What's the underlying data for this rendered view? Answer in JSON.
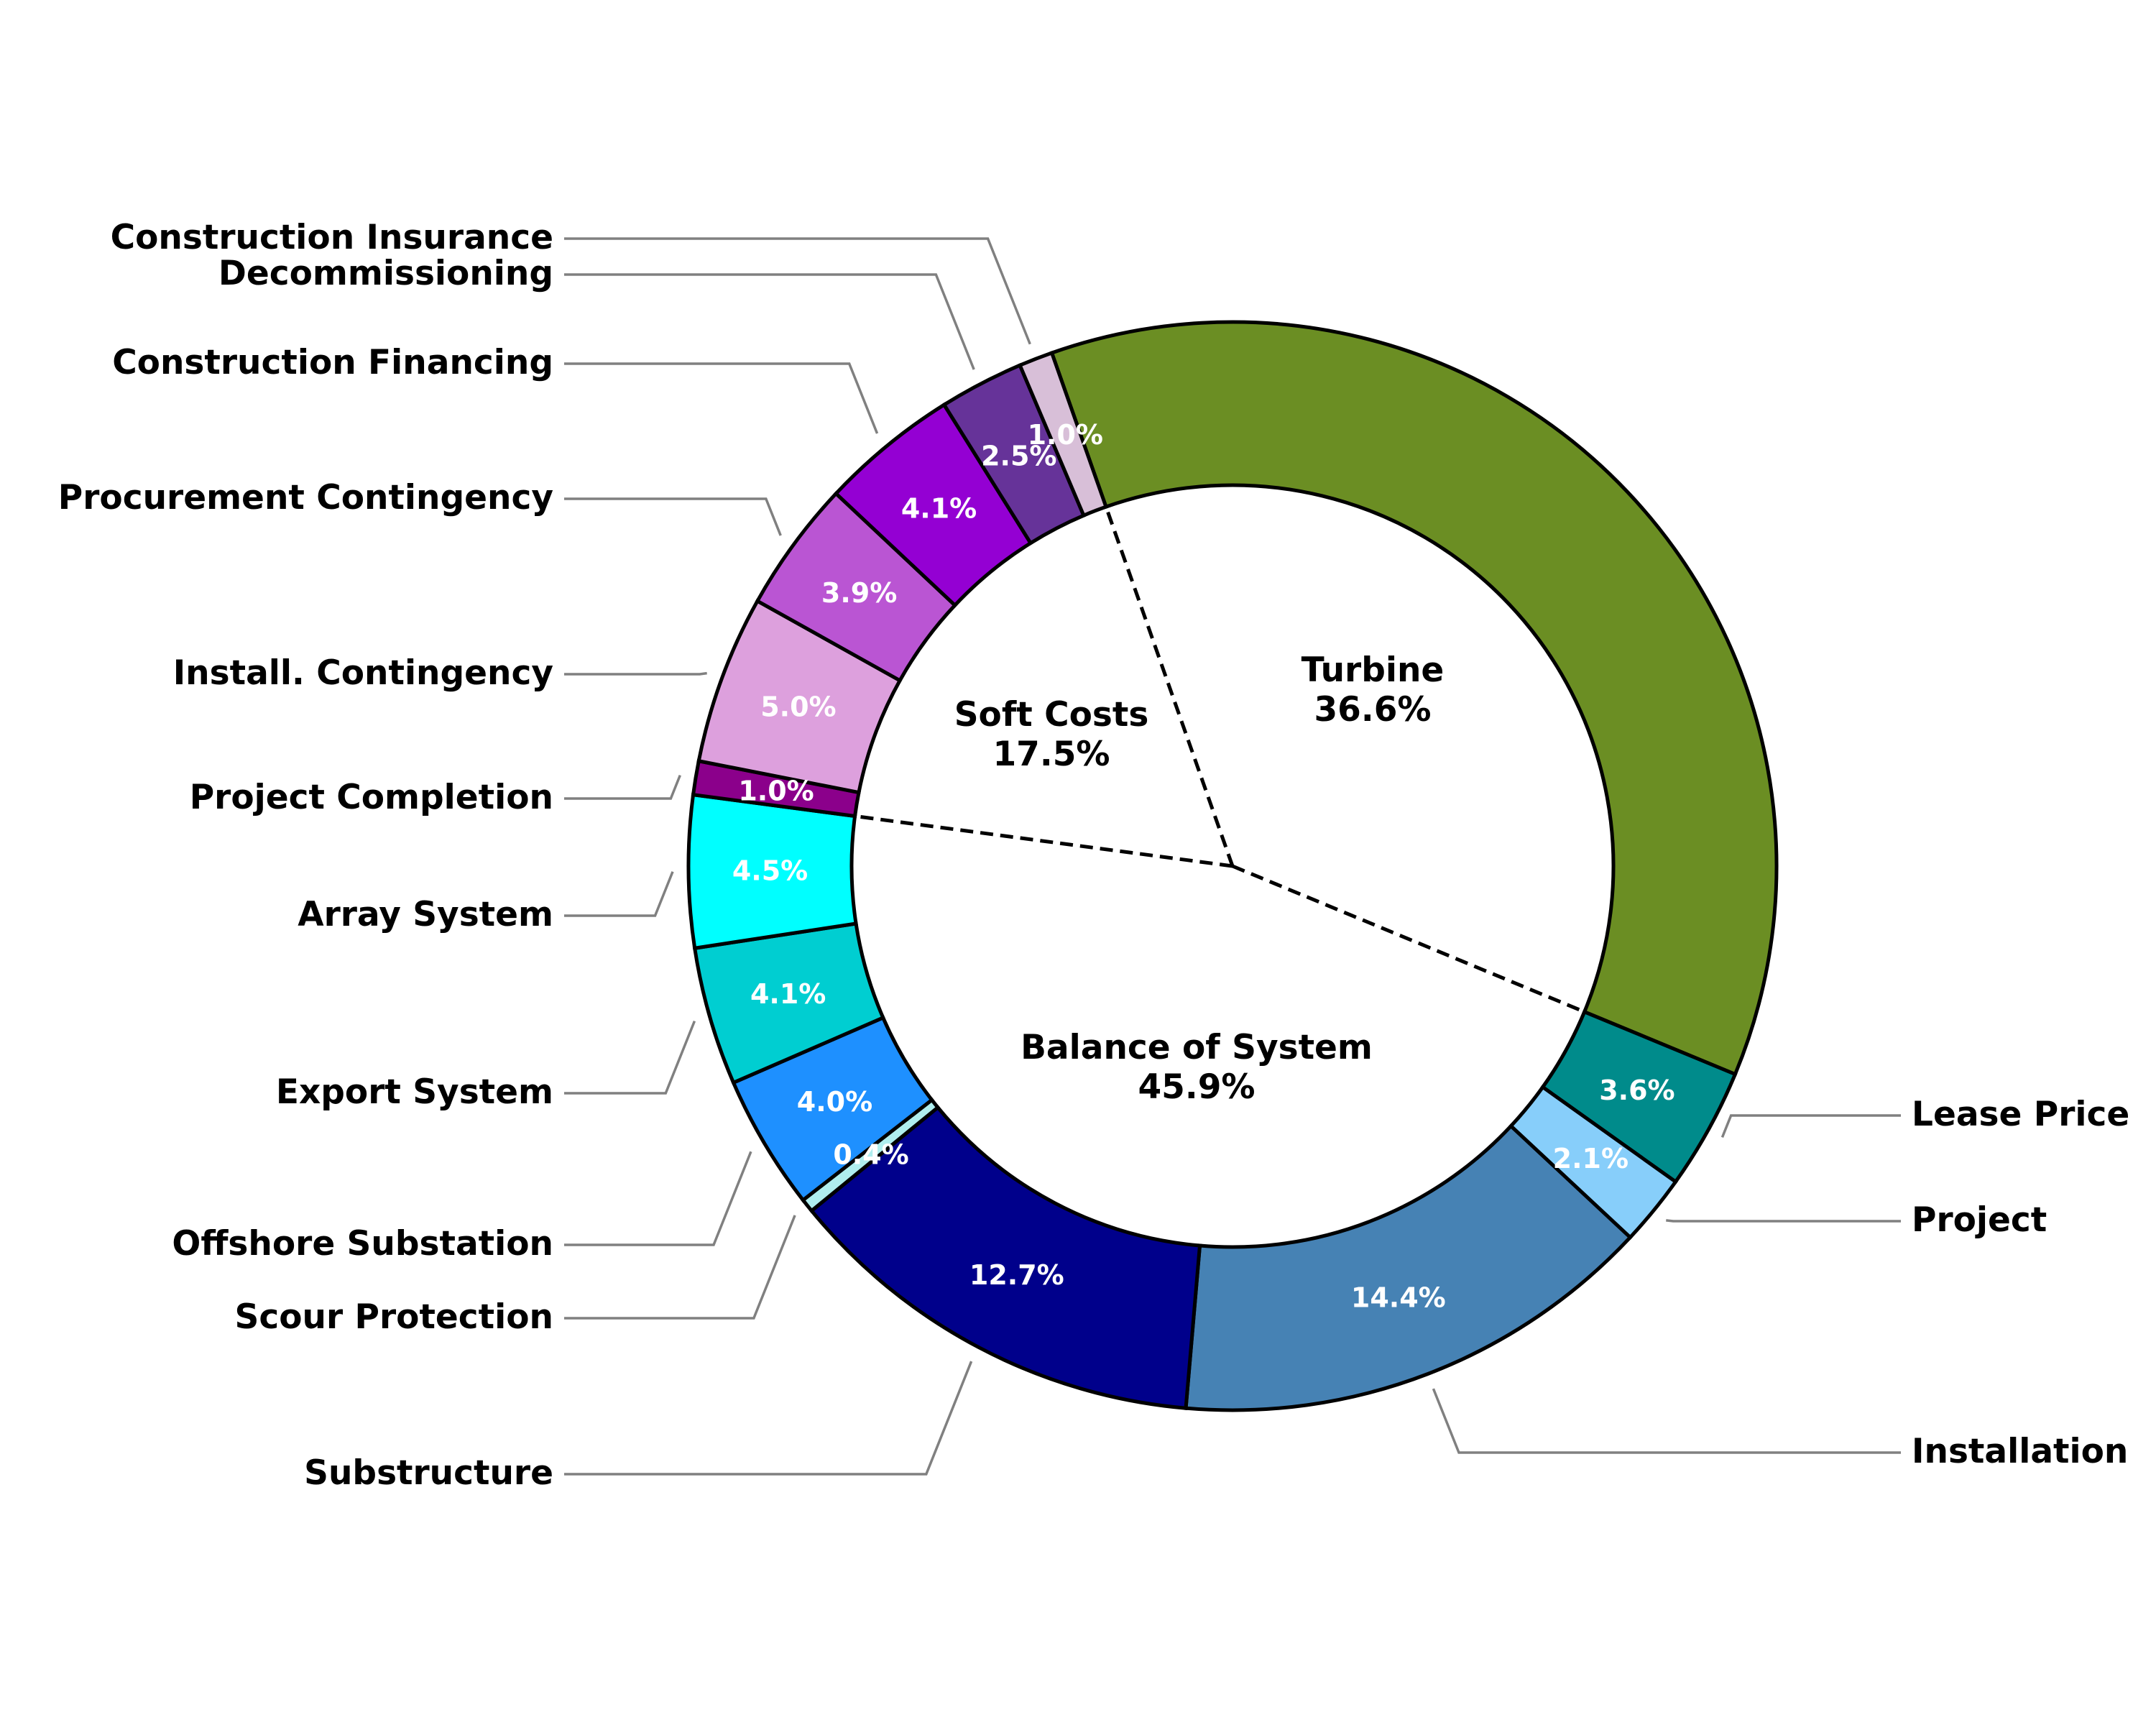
{
  "chart_data": {
    "type": "pie",
    "subtype": "donut",
    "segments": [
      {
        "name": "Turbine",
        "value": 36.6,
        "label": "",
        "color": "#6b8e23",
        "group": "Turbine"
      },
      {
        "name": "Lease Price",
        "value": 3.6,
        "label": "3.6%",
        "color": "#008b8b",
        "group": "Balance of System"
      },
      {
        "name": "Project",
        "value": 2.1,
        "label": "2.1%",
        "color": "#87cefa",
        "group": "Balance of System"
      },
      {
        "name": "Installation",
        "value": 14.4,
        "label": "14.4%",
        "color": "#4682b4",
        "group": "Balance of System"
      },
      {
        "name": "Substructure",
        "value": 12.7,
        "label": "12.7%",
        "color": "#00008b",
        "group": "Balance of System"
      },
      {
        "name": "Scour Protection",
        "value": 0.4,
        "label": "0.4%",
        "color": "#afeeee",
        "group": "Balance of System"
      },
      {
        "name": "Offshore Substation",
        "value": 4.0,
        "label": "4.0%",
        "color": "#1e90ff",
        "group": "Balance of System"
      },
      {
        "name": "Export System",
        "value": 4.1,
        "label": "4.1%",
        "color": "#00ced1",
        "group": "Balance of System"
      },
      {
        "name": "Array System",
        "value": 4.5,
        "label": "4.5%",
        "color": "#00ffff",
        "group": "Balance of System"
      },
      {
        "name": "Project Completion",
        "value": 1.0,
        "label": "1.0%",
        "color": "#8b008b",
        "group": "Soft Costs"
      },
      {
        "name": "Install. Contingency",
        "value": 5.0,
        "label": "5.0%",
        "color": "#dda0dd",
        "group": "Soft Costs"
      },
      {
        "name": "Procurement Contingency",
        "value": 3.9,
        "label": "3.9%",
        "color": "#ba55d3",
        "group": "Soft Costs"
      },
      {
        "name": "Construction Financing",
        "value": 4.1,
        "label": "4.1%",
        "color": "#9400d3",
        "group": "Soft Costs"
      },
      {
        "name": "Decommissioning",
        "value": 2.5,
        "label": "2.5%",
        "color": "#663399",
        "group": "Soft Costs"
      },
      {
        "name": "Construction Insurance",
        "value": 1.0,
        "label": "1.0%",
        "color": "#d8bfd8",
        "group": "Soft Costs"
      }
    ],
    "groups": [
      {
        "name": "Turbine",
        "value": 36.6,
        "label": "36.6%"
      },
      {
        "name": "Balance of System",
        "value": 45.9,
        "label": "45.9%"
      },
      {
        "name": "Soft Costs",
        "value": 17.5,
        "label": "17.5%"
      }
    ],
    "legend": "none",
    "title": ""
  }
}
